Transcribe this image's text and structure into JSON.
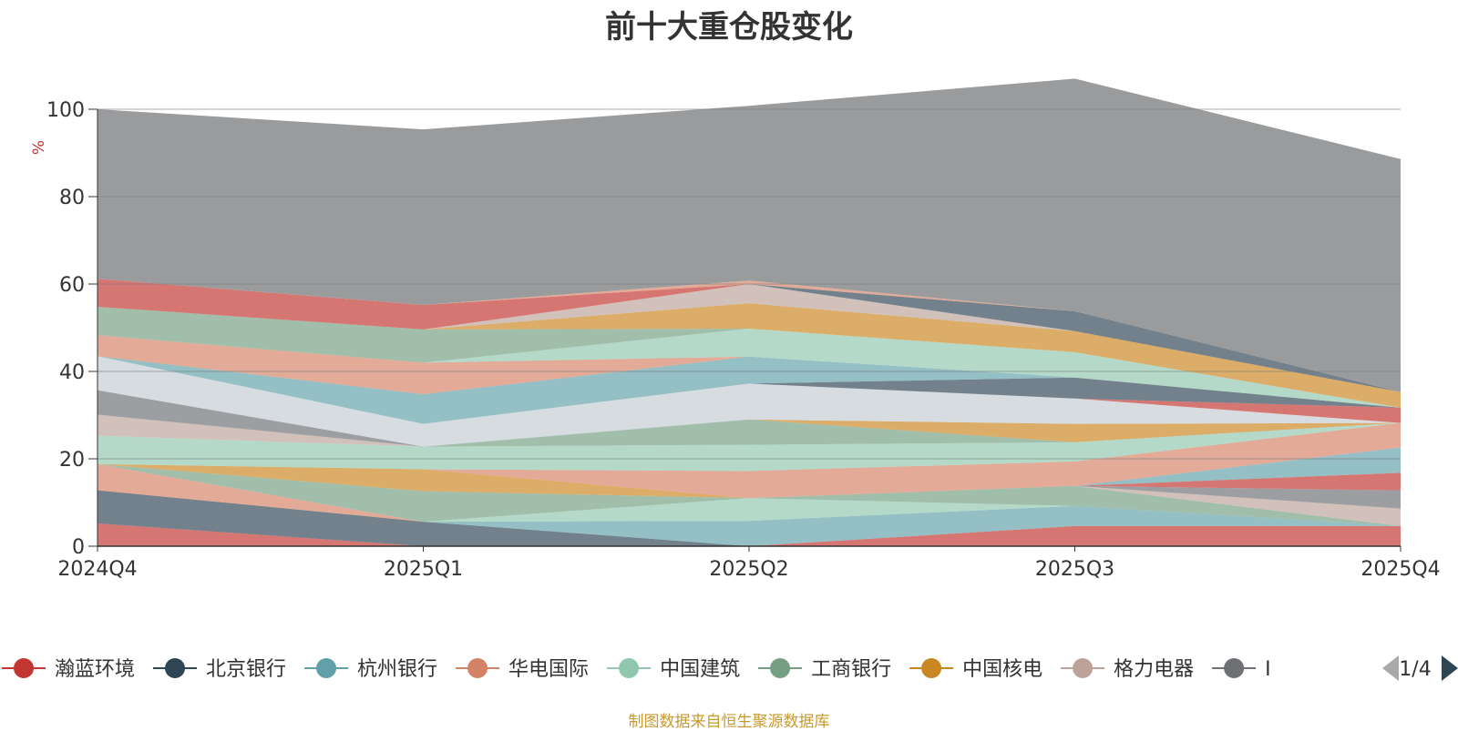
{
  "colors": {
    "other": "#9a9b9d",
    "palette": [
      "#c23531",
      "#2f4554",
      "#61a0a8",
      "#d48265",
      "#91c7ae",
      "#749f83",
      "#ca8622",
      "#bda29a",
      "#6e7074",
      "#c4ccd3"
    ]
  },
  "chart_data": {
    "type": "area",
    "title": "前十大重仓股变化",
    "ylabel": "%",
    "xlabel": "",
    "ylim": [
      0,
      100
    ],
    "yticks": [
      0,
      20,
      40,
      60,
      80,
      100
    ],
    "categories": [
      "2024Q4",
      "2025Q1",
      "2025Q2",
      "2025Q3",
      "2025Q4"
    ],
    "stacked": true,
    "grid": true,
    "legend_position": "bottom",
    "legend_page": "1/4",
    "series": [
      {
        "name": "瀚蓝环境",
        "values": [
          5.2,
          0,
          0,
          4.6,
          4.6
        ]
      },
      {
        "name": "北京银行",
        "values": [
          7.6,
          5.6,
          0,
          0,
          0
        ]
      },
      {
        "name": "杭州银行",
        "values": [
          0,
          0,
          5.8,
          4.6,
          0
        ]
      },
      {
        "name": "华电国际",
        "values": [
          6,
          0,
          0,
          0,
          0
        ]
      },
      {
        "name": "中国建筑",
        "values": [
          0,
          0,
          5.2,
          0,
          0
        ]
      },
      {
        "name": "工商银行",
        "values": [
          0,
          7,
          0,
          4.6,
          0
        ]
      },
      {
        "name": "中国核电",
        "values": [
          0,
          5,
          0,
          0,
          0
        ]
      },
      {
        "name": "格力电器",
        "values": [
          0,
          0,
          0,
          0,
          4
        ]
      },
      {
        "name": "",
        "values": [
          0,
          0,
          0,
          0,
          4.2
        ]
      },
      {
        "name": "",
        "values": [
          0,
          0,
          0,
          0,
          0
        ]
      },
      {
        "name": "",
        "values": [
          0,
          0,
          0,
          0,
          4
        ]
      },
      {
        "name": "",
        "values": [
          0,
          0,
          0,
          0,
          0
        ]
      },
      {
        "name": "",
        "values": [
          0,
          0,
          0,
          0,
          5.8
        ]
      },
      {
        "name": "",
        "values": [
          0,
          0,
          6.2,
          5.6,
          5.6
        ]
      },
      {
        "name": "",
        "values": [
          6.5,
          5.2,
          6,
          4.4,
          0
        ]
      },
      {
        "name": "",
        "values": [
          0,
          0,
          5.8,
          0,
          0
        ]
      },
      {
        "name": "",
        "values": [
          0,
          0,
          0,
          4.2,
          0
        ]
      },
      {
        "name": "",
        "values": [
          4.8,
          0,
          0,
          0,
          0
        ]
      },
      {
        "name": "",
        "values": [
          5.6,
          0,
          0,
          0,
          0
        ]
      },
      {
        "name": "",
        "values": [
          7.8,
          5.2,
          8.2,
          5.8,
          0
        ]
      },
      {
        "name": "",
        "values": [
          0,
          0,
          0,
          0,
          3.5
        ]
      },
      {
        "name": "",
        "values": [
          0,
          0,
          0,
          4.8,
          0
        ]
      },
      {
        "name": "",
        "values": [
          0,
          6.8,
          6.2,
          0,
          0
        ]
      },
      {
        "name": "",
        "values": [
          4.8,
          7.2,
          0,
          0,
          0
        ]
      },
      {
        "name": "",
        "values": [
          0,
          0,
          6.4,
          5.8,
          0
        ]
      },
      {
        "name": "",
        "values": [
          6.5,
          7.6,
          0,
          0,
          0
        ]
      },
      {
        "name": "",
        "values": [
          0,
          0,
          5.8,
          4.8,
          3.6
        ]
      },
      {
        "name": "",
        "values": [
          0,
          0,
          4.4,
          0,
          0
        ]
      },
      {
        "name": "",
        "values": [
          0,
          0,
          0,
          0,
          0
        ]
      },
      {
        "name": "",
        "values": [
          0,
          0,
          0,
          0,
          0
        ]
      },
      {
        "name": "",
        "values": [
          6.4,
          5.6,
          0,
          0,
          0
        ]
      },
      {
        "name": "",
        "values": [
          0,
          0,
          0,
          4.6,
          0
        ]
      },
      {
        "name": "",
        "values": [
          0,
          0,
          0,
          0,
          0
        ]
      },
      {
        "name": "",
        "values": [
          0,
          0,
          0.8,
          0,
          0
        ]
      }
    ],
    "other": {
      "name": "",
      "values": [
        38.8,
        40.2,
        40,
        53.2,
        53.3
      ]
    }
  },
  "legend": {
    "items": [
      "瀚蓝环境",
      "北京银行",
      "杭州银行",
      "华电国际",
      "中国建筑",
      "工商银行",
      "中国核电",
      "格力电器",
      "I"
    ],
    "page": "1/4"
  },
  "source_note": "制图数据来自恒生聚源数据库"
}
